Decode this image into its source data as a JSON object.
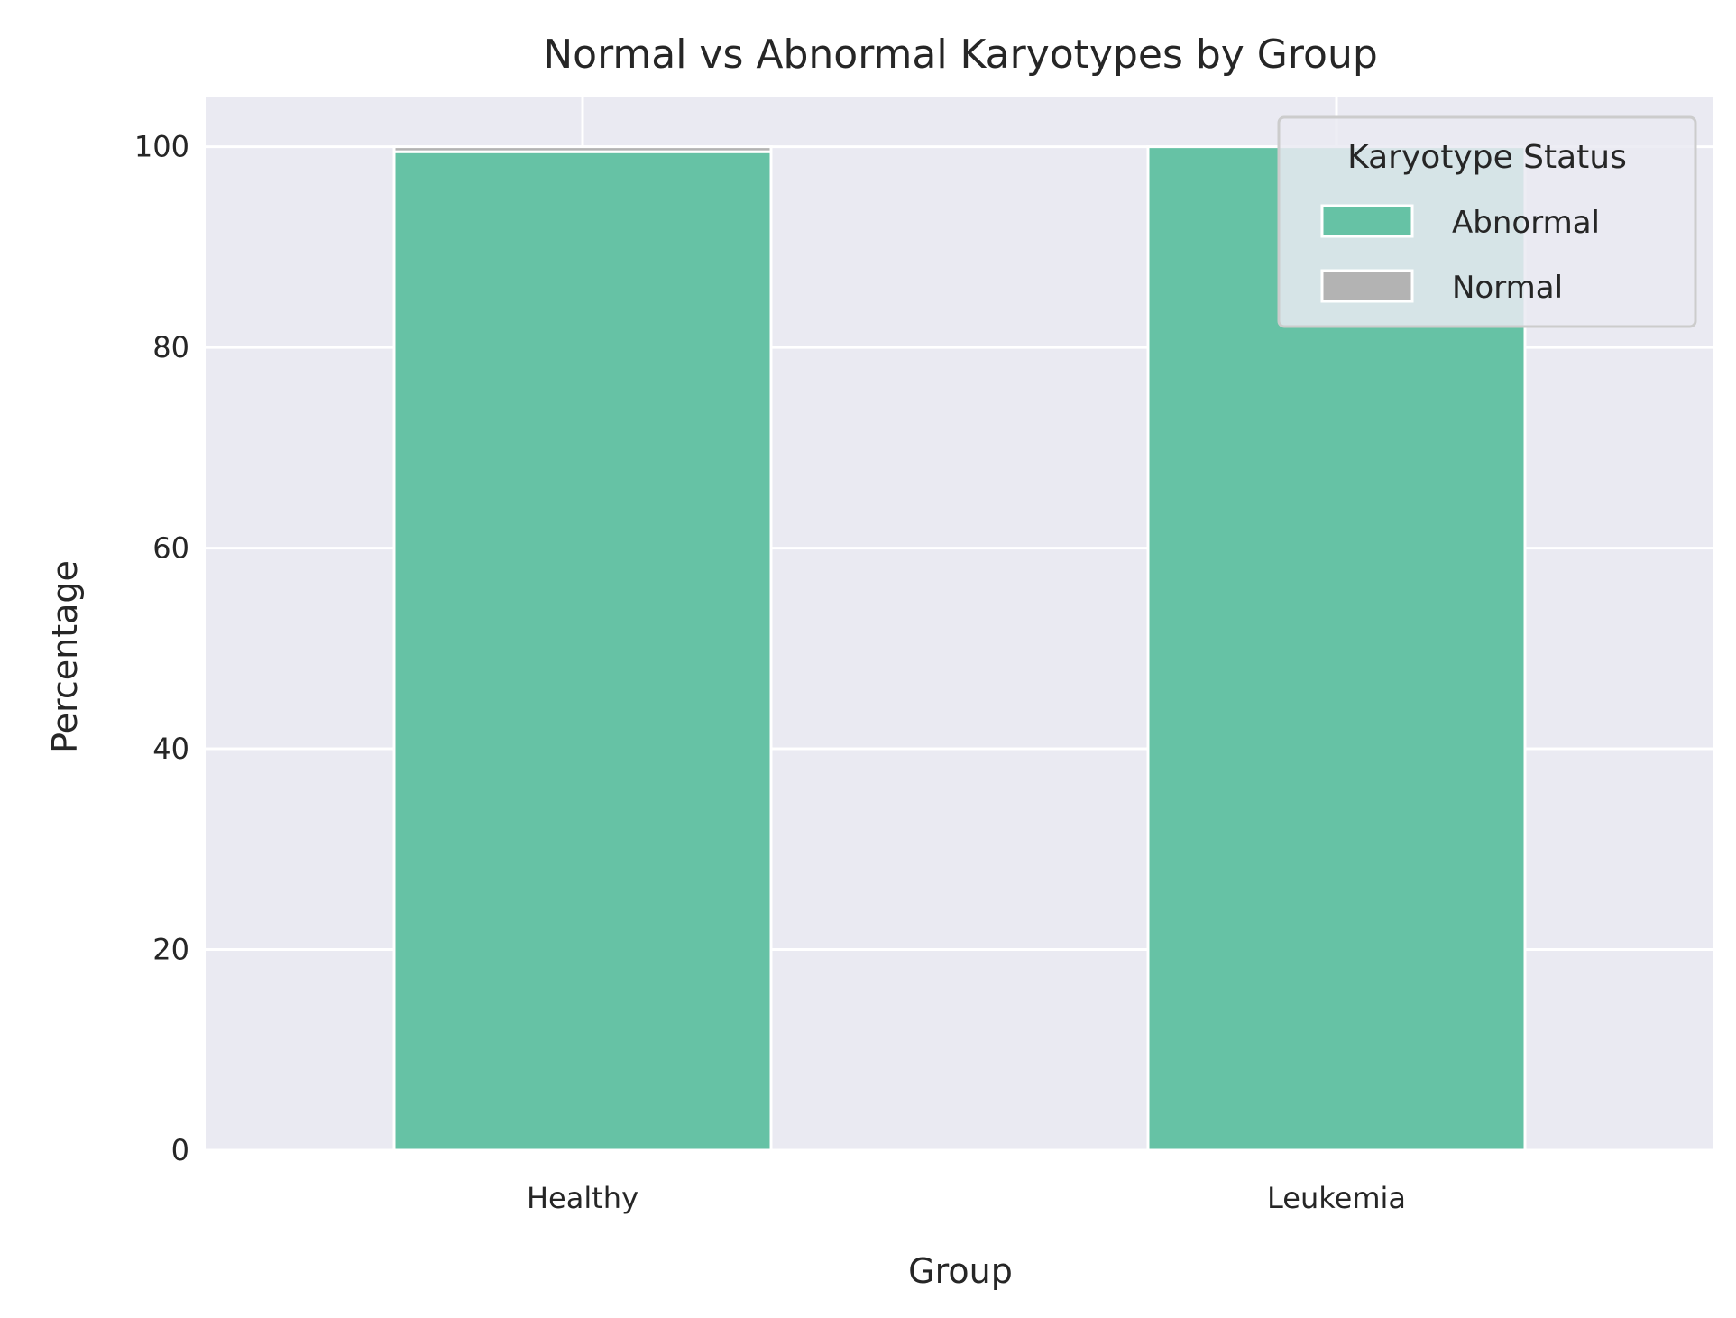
{
  "chart_data": {
    "type": "bar",
    "stacked": true,
    "title": "Normal vs Abnormal Karyotypes by Group",
    "xlabel": "Group",
    "ylabel": "Percentage",
    "categories": [
      "Healthy",
      "Leukemia"
    ],
    "series": [
      {
        "name": "Abnormal",
        "values": [
          99.5,
          100.0
        ],
        "color": "#66c2a5"
      },
      {
        "name": "Normal",
        "values": [
          0.5,
          0.0
        ],
        "color": "#b3b3b3"
      }
    ],
    "ylim": [
      0,
      105
    ],
    "yticks": [
      0,
      20,
      40,
      60,
      80,
      100
    ],
    "grid": true,
    "background": "#eaeaf2",
    "legend": {
      "title": "Karyotype Status",
      "placement": "top-right"
    }
  }
}
